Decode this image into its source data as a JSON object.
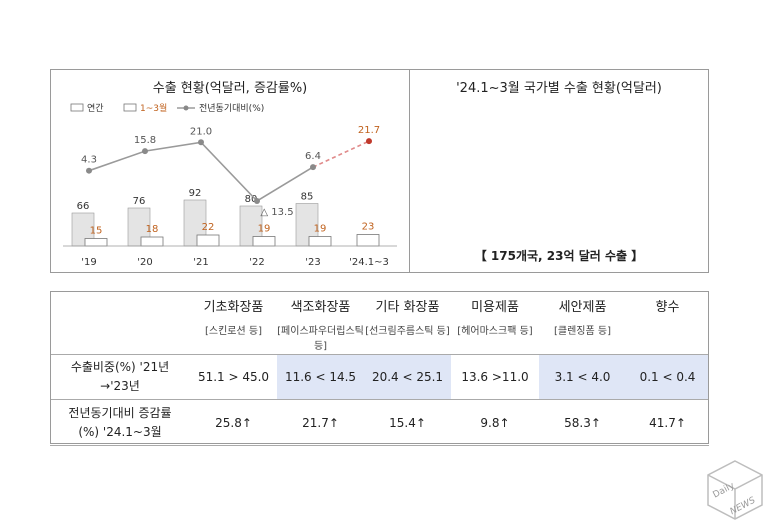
{
  "left_panel": {
    "title": "수출 현황(억달러, 증감률%)",
    "legend": {
      "annual": "연간",
      "q1": "1~3월",
      "yoy": "전년동기대비(%)"
    }
  },
  "right_panel": {
    "title": "'24.1~3월 국가별 수출 현황(억달러)",
    "summary": "【 175개국, 23억 달러 수출 】"
  },
  "colors": {
    "q1_label": "#c0621e",
    "projection": "#e08a8a",
    "projection_point": "#c0392b",
    "line": "#9a9a9a",
    "highlight": "#dfe6f6"
  },
  "chart_data": {
    "type": "bar",
    "categories": [
      "'19",
      "'20",
      "'21",
      "'22",
      "'23",
      "'24.1~3"
    ],
    "series": [
      {
        "name": "연간",
        "values": [
          66,
          76,
          92,
          80,
          85,
          null
        ]
      },
      {
        "name": "1~3월",
        "values": [
          15,
          18,
          22,
          19,
          19,
          23
        ]
      }
    ],
    "line": {
      "name": "전년동기대비(%)",
      "values": [
        4.3,
        15.8,
        21.0,
        -13.5,
        6.4,
        21.7
      ],
      "labels": [
        "4.3",
        "15.8",
        "21.0",
        "△ 13.5",
        "6.4",
        "21.7"
      ],
      "projected_last": true
    }
  },
  "table": {
    "products": [
      {
        "name": "기초화장품",
        "sub": "[스킨로션 등]"
      },
      {
        "name": "색조화장품",
        "sub": "[페이스파우더립스틱 등]"
      },
      {
        "name": "기타 화장품",
        "sub": "[선크림주름스틱 등]"
      },
      {
        "name": "미용제품",
        "sub": "[헤어마스크팩 등]"
      },
      {
        "name": "세안제품",
        "sub": "[클렌징폼 등]"
      },
      {
        "name": "향수",
        "sub": ""
      }
    ],
    "row1": {
      "label_line1": "수출비중(%)   '21년",
      "label_line2": "→'23년",
      "values": [
        "51.1 > 45.0",
        "11.6 < 14.5",
        "20.4 < 25.1",
        "13.6 >11.0",
        "3.1 < 4.0",
        "0.1 < 0.4"
      ]
    },
    "row2": {
      "label_line1": "전년동기대비 증감률",
      "label_line2": "(%) '24.1~3월",
      "values": [
        "25.8↑",
        "21.7↑",
        "15.4↑",
        "9.8↑",
        "58.3↑",
        "41.7↑"
      ]
    }
  },
  "watermark": {
    "line1": "Daily",
    "line2": "NEWS"
  }
}
